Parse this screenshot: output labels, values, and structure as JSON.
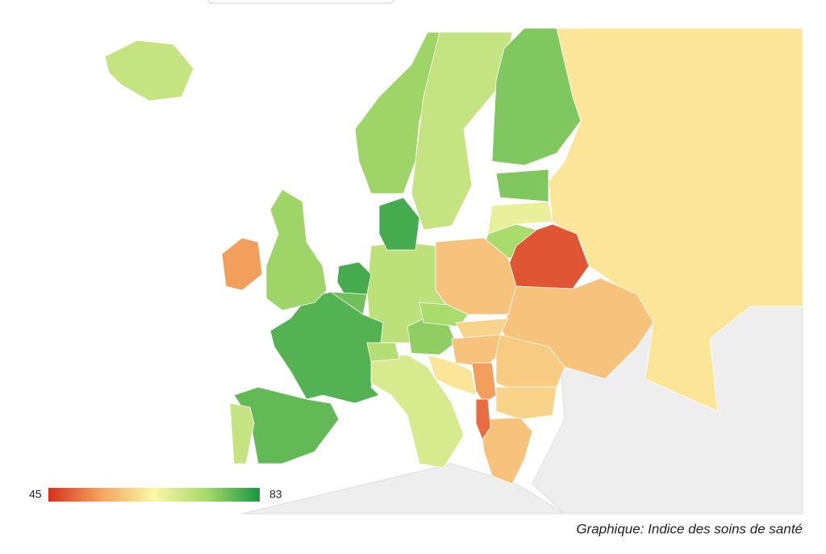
{
  "map": {
    "values": [
      70,
      74,
      70,
      76,
      62,
      76,
      66,
      73,
      48,
      58,
      58,
      71,
      80,
      80,
      77,
      79,
      78,
      70,
      74,
      54,
      68,
      72,
      75,
      73,
      60,
      58,
      59,
      54,
      62,
      60,
      58,
      50
    ],
    "colorscale": [
      "#d7301f",
      "#f4a460",
      "#fbf6a8",
      "#a6d96a",
      "#1a9641"
    ],
    "legend": {
      "min": 45,
      "max": 83
    },
    "caption": "Graphique: Indice des soins de santé"
  }
}
